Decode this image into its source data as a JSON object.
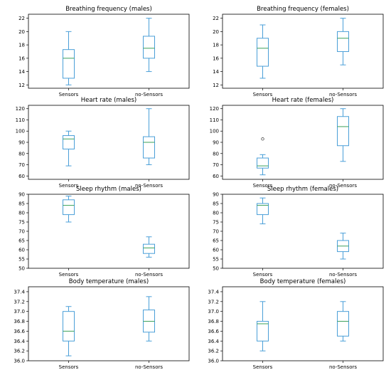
{
  "chart_data": [
    {
      "type": "box",
      "title": "Breathing frequency (males)",
      "categories": [
        "Sensors",
        "no-Sensors"
      ],
      "yticks": [
        12,
        14,
        16,
        18,
        20,
        22
      ],
      "ylim": [
        11.5,
        22.6
      ],
      "boxes": [
        {
          "whislo": 12,
          "q1": 13,
          "med": 16,
          "q3": 17.3,
          "whishi": 20,
          "fliers": []
        },
        {
          "whislo": 14,
          "q1": 16,
          "med": 17.5,
          "q3": 19.3,
          "whishi": 22,
          "fliers": []
        }
      ]
    },
    {
      "type": "box",
      "title": "Breathing frequency (females)",
      "categories": [
        "Sensors",
        "no-Sensors"
      ],
      "yticks": [
        12,
        14,
        16,
        18,
        20,
        22
      ],
      "ylim": [
        11.5,
        22.6
      ],
      "boxes": [
        {
          "whislo": 13,
          "q1": 14.8,
          "med": 17.5,
          "q3": 19,
          "whishi": 21,
          "fliers": []
        },
        {
          "whislo": 15,
          "q1": 17,
          "med": 19,
          "q3": 20,
          "whishi": 22,
          "fliers": []
        }
      ]
    },
    {
      "type": "box",
      "title": "Heart rate (males)",
      "categories": [
        "Sensors",
        "no-Sensors"
      ],
      "yticks": [
        60,
        70,
        80,
        90,
        100,
        110,
        120
      ],
      "ylim": [
        57,
        123
      ],
      "boxes": [
        {
          "whislo": 69,
          "q1": 84,
          "med": 93,
          "q3": 96,
          "whishi": 100,
          "fliers": []
        },
        {
          "whislo": 70,
          "q1": 76,
          "med": 90,
          "q3": 95,
          "whishi": 120,
          "fliers": []
        }
      ]
    },
    {
      "type": "box",
      "title": "Heart rate (females)",
      "categories": [
        "Sensors",
        "no-Sensors"
      ],
      "yticks": [
        60,
        70,
        80,
        90,
        100,
        110,
        120
      ],
      "ylim": [
        57,
        123
      ],
      "boxes": [
        {
          "whislo": 61,
          "q1": 67,
          "med": 69,
          "q3": 76,
          "whishi": 79,
          "fliers": [
            93
          ]
        },
        {
          "whislo": 73,
          "q1": 87,
          "med": 104,
          "q3": 113,
          "whishi": 120,
          "fliers": []
        }
      ]
    },
    {
      "type": "box",
      "title": "Sleep rhythm (males)",
      "categories": [
        "Sensors",
        "no-Sensors"
      ],
      "yticks": [
        50,
        55,
        60,
        65,
        70,
        75,
        80,
        85,
        90
      ],
      "ylim": [
        50,
        90
      ],
      "boxes": [
        {
          "whislo": 75,
          "q1": 79,
          "med": 84,
          "q3": 87,
          "whishi": 89,
          "fliers": []
        },
        {
          "whislo": 56,
          "q1": 58,
          "med": 61,
          "q3": 63,
          "whishi": 67,
          "fliers": []
        }
      ]
    },
    {
      "type": "box",
      "title": "Sleep rhythm (females)",
      "categories": [
        "Sensors",
        "no-Sensors"
      ],
      "yticks": [
        50,
        55,
        60,
        65,
        70,
        75,
        80,
        85,
        90
      ],
      "ylim": [
        50,
        90
      ],
      "boxes": [
        {
          "whislo": 74,
          "q1": 79,
          "med": 84,
          "q3": 85,
          "whishi": 88,
          "fliers": []
        },
        {
          "whislo": 55,
          "q1": 59,
          "med": 62,
          "q3": 65,
          "whishi": 69,
          "fliers": []
        }
      ]
    },
    {
      "type": "box",
      "title": "Body temperature (males)",
      "categories": [
        "Sensors",
        "no-Sensors"
      ],
      "yticks": [
        "36.0",
        "36.2",
        "36.4",
        "36.6",
        "36.8",
        "37.0",
        "37.2",
        "37.4"
      ],
      "ylim": [
        36.0,
        37.5
      ],
      "boxes": [
        {
          "whislo": 36.1,
          "q1": 36.4,
          "med": 36.6,
          "q3": 37.0,
          "whishi": 37.1,
          "fliers": []
        },
        {
          "whislo": 36.4,
          "q1": 36.58,
          "med": 36.8,
          "q3": 37.03,
          "whishi": 37.3,
          "fliers": []
        }
      ]
    },
    {
      "type": "box",
      "title": "Body temperature (females)",
      "categories": [
        "Sensors",
        "no-Sensors"
      ],
      "yticks": [
        "36.0",
        "36.2",
        "36.4",
        "36.6",
        "36.8",
        "37.0",
        "37.2",
        "37.4"
      ],
      "ylim": [
        36.0,
        37.5
      ],
      "boxes": [
        {
          "whislo": 36.2,
          "q1": 36.4,
          "med": 36.75,
          "q3": 36.8,
          "whishi": 37.2,
          "fliers": []
        },
        {
          "whislo": 36.4,
          "q1": 36.5,
          "med": 36.8,
          "q3": 37.0,
          "whishi": 37.2,
          "fliers": []
        }
      ]
    }
  ],
  "colors": {
    "box": "#4a9fd8",
    "median": "#3aa05a",
    "axis": "#000000",
    "background": "#ffffff"
  }
}
